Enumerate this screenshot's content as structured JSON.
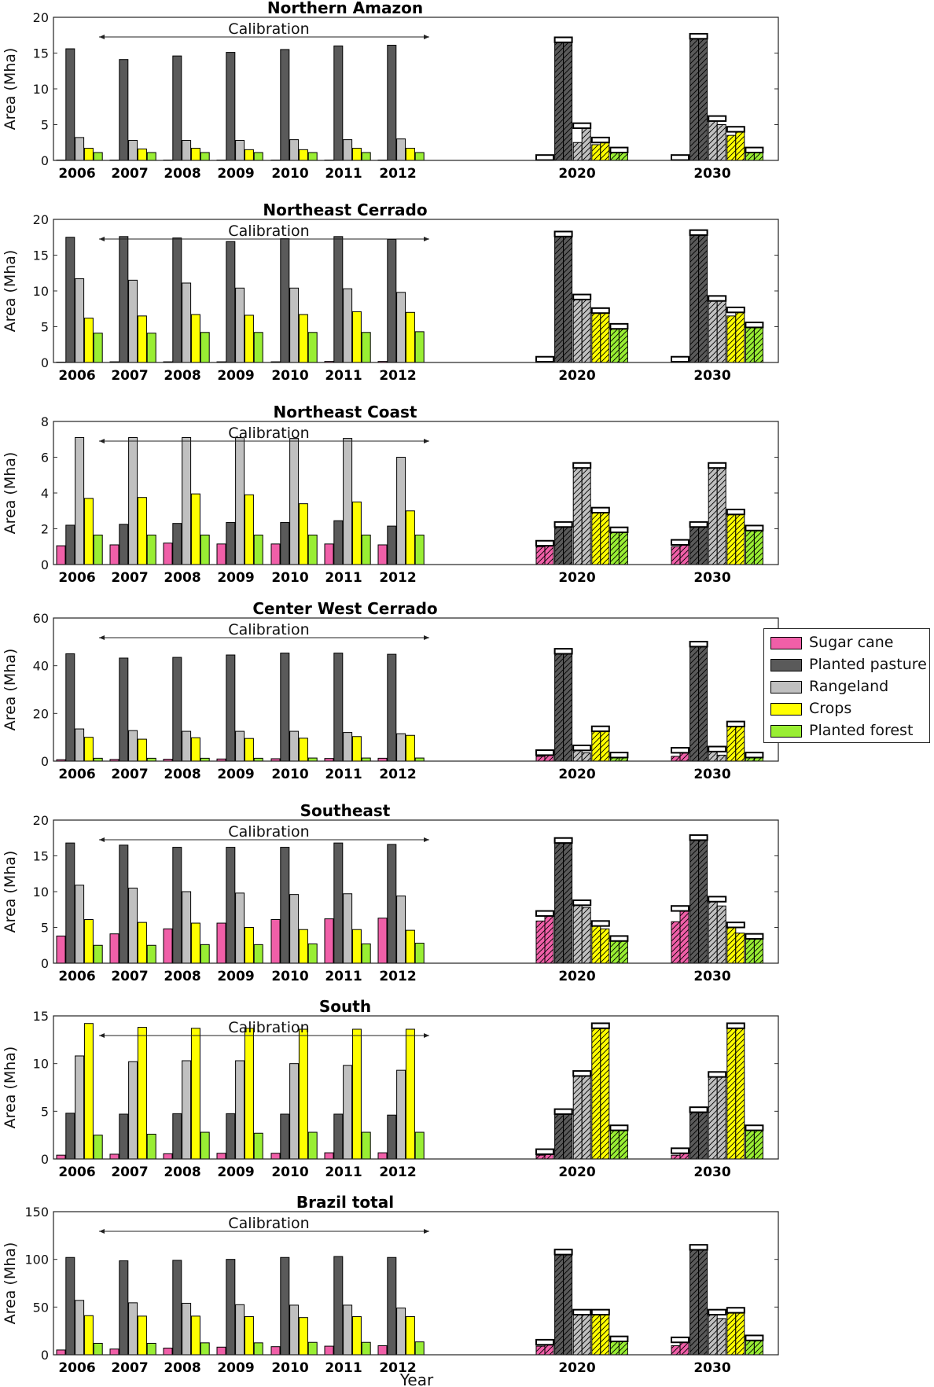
{
  "chart_data": {
    "type": "bar",
    "xlabel": "Year",
    "ylabel": "Area (Mha)",
    "annotation": "Calibration",
    "legend_position": "right",
    "series": [
      {
        "name": "Sugar cane",
        "color": "#f05fa8"
      },
      {
        "name": "Planted pasture",
        "color": "#5a5a5a"
      },
      {
        "name": "Rangeland",
        "color": "#c0c0c0"
      },
      {
        "name": "Crops",
        "color": "#ffff00"
      },
      {
        "name": "Planted forest",
        "color": "#99ee33"
      }
    ],
    "categories": [
      "2006",
      "2007",
      "2008",
      "2009",
      "2010",
      "2011",
      "2012",
      "2020",
      "2030"
    ],
    "panels": [
      {
        "title": "Northern Amazon",
        "ylim": [
          0,
          20
        ],
        "yticks": [
          0,
          5,
          10,
          15,
          20
        ],
        "historical": {
          "2006": [
            0.05,
            15.6,
            3.2,
            1.7,
            1.1
          ],
          "2007": [
            0.05,
            14.1,
            2.8,
            1.6,
            1.1
          ],
          "2008": [
            0.05,
            14.6,
            2.8,
            1.7,
            1.1
          ],
          "2009": [
            0.05,
            15.1,
            2.8,
            1.5,
            1.1
          ],
          "2010": [
            0.05,
            15.5,
            2.9,
            1.5,
            1.1
          ],
          "2011": [
            0.05,
            16.0,
            2.9,
            1.7,
            1.1
          ],
          "2012": [
            0.05,
            16.1,
            3.0,
            1.7,
            1.1
          ]
        },
        "projection": {
          "2020": [
            [
              0.05,
              0.05
            ],
            [
              16.5,
              16.5
            ],
            [
              2.5,
              4.5
            ],
            [
              2.2,
              2.5
            ],
            [
              1.1,
              1.1
            ]
          ],
          "2030": [
            [
              0.05,
              0.05
            ],
            [
              17.0,
              17.0
            ],
            [
              5.5,
              5.0
            ],
            [
              3.5,
              4.0
            ],
            [
              1.1,
              1.1
            ]
          ]
        }
      },
      {
        "title": "Northeast Cerrado",
        "ylim": [
          0,
          20
        ],
        "yticks": [
          0,
          5,
          10,
          15,
          20
        ],
        "historical": {
          "2006": [
            0.05,
            17.5,
            11.7,
            6.2,
            4.1
          ],
          "2007": [
            0.1,
            17.6,
            11.5,
            6.5,
            4.1
          ],
          "2008": [
            0.1,
            17.4,
            11.1,
            6.7,
            4.2
          ],
          "2009": [
            0.1,
            16.9,
            10.4,
            6.6,
            4.2
          ],
          "2010": [
            0.1,
            17.3,
            10.4,
            6.7,
            4.2
          ],
          "2011": [
            0.15,
            17.6,
            10.3,
            7.1,
            4.2
          ],
          "2012": [
            0.15,
            17.2,
            9.8,
            7.0,
            4.3
          ]
        },
        "projection": {
          "2020": [
            [
              0.1,
              0.1
            ],
            [
              17.6,
              17.6
            ],
            [
              8.8,
              8.8
            ],
            [
              6.9,
              6.9
            ],
            [
              4.7,
              4.7
            ]
          ],
          "2030": [
            [
              0.1,
              0.1
            ],
            [
              17.8,
              17.8
            ],
            [
              8.6,
              8.6
            ],
            [
              6.5,
              7.0
            ],
            [
              4.9,
              4.9
            ]
          ]
        }
      },
      {
        "title": "Northeast Coast",
        "ylim": [
          0,
          8
        ],
        "yticks": [
          0,
          2,
          4,
          6,
          8
        ],
        "historical": {
          "2006": [
            1.05,
            2.2,
            7.1,
            3.7,
            1.65
          ],
          "2007": [
            1.1,
            2.25,
            7.1,
            3.75,
            1.65
          ],
          "2008": [
            1.2,
            2.3,
            7.1,
            3.95,
            1.65
          ],
          "2009": [
            1.15,
            2.35,
            7.1,
            3.9,
            1.65
          ],
          "2010": [
            1.15,
            2.35,
            7.05,
            3.4,
            1.65
          ],
          "2011": [
            1.15,
            2.45,
            7.05,
            3.5,
            1.65
          ],
          "2012": [
            1.1,
            2.15,
            6.0,
            3.0,
            1.65
          ]
        },
        "projection": {
          "2020": [
            [
              1.0,
              1.05
            ],
            [
              2.1,
              2.1
            ],
            [
              5.4,
              5.4
            ],
            [
              2.9,
              2.9
            ],
            [
              1.8,
              1.8
            ]
          ],
          "2030": [
            [
              1.0,
              1.1
            ],
            [
              2.1,
              2.1
            ],
            [
              5.4,
              5.4
            ],
            [
              2.8,
              2.8
            ],
            [
              1.9,
              1.9
            ]
          ]
        }
      },
      {
        "title": "Center West Cerrado",
        "ylim": [
          0,
          60
        ],
        "yticks": [
          0,
          20,
          40,
          60
        ],
        "historical": {
          "2006": [
            0.6,
            45.0,
            13.5,
            10.0,
            1.2
          ],
          "2007": [
            0.7,
            43.2,
            12.8,
            9.2,
            1.2
          ],
          "2008": [
            0.8,
            43.5,
            12.5,
            9.8,
            1.2
          ],
          "2009": [
            0.9,
            44.5,
            12.5,
            9.5,
            1.2
          ],
          "2010": [
            1.0,
            45.3,
            12.5,
            9.6,
            1.3
          ],
          "2011": [
            1.1,
            45.3,
            12.0,
            10.3,
            1.3
          ],
          "2012": [
            1.2,
            44.8,
            11.5,
            10.8,
            1.3
          ]
        },
        "projection": {
          "2020": [
            [
              2.0,
              2.5
            ],
            [
              45.0,
              45.0
            ],
            [
              4.5,
              3.5
            ],
            [
              12.5,
              12.5
            ],
            [
              1.5,
              1.5
            ]
          ],
          "2030": [
            [
              2.0,
              3.5
            ],
            [
              48.0,
              48.0
            ],
            [
              4.0,
              2.5
            ],
            [
              14.5,
              14.5
            ],
            [
              1.5,
              1.5
            ]
          ]
        }
      },
      {
        "title": "Southeast",
        "ylim": [
          0,
          20
        ],
        "yticks": [
          0,
          5,
          10,
          15,
          20
        ],
        "historical": {
          "2006": [
            3.8,
            16.8,
            10.9,
            6.1,
            2.5
          ],
          "2007": [
            4.1,
            16.5,
            10.5,
            5.7,
            2.5
          ],
          "2008": [
            4.8,
            16.2,
            10.0,
            5.6,
            2.6
          ],
          "2009": [
            5.6,
            16.2,
            9.8,
            5.0,
            2.6
          ],
          "2010": [
            6.1,
            16.2,
            9.6,
            4.7,
            2.7
          ],
          "2011": [
            6.2,
            16.8,
            9.7,
            4.7,
            2.7
          ],
          "2012": [
            6.3,
            16.6,
            9.4,
            4.6,
            2.8
          ]
        },
        "projection": {
          "2020": [
            [
              5.9,
              6.6
            ],
            [
              16.8,
              16.8
            ],
            [
              8.1,
              7.8
            ],
            [
              5.2,
              4.8
            ],
            [
              3.1,
              3.1
            ]
          ],
          "2030": [
            [
              5.8,
              7.3
            ],
            [
              17.2,
              17.2
            ],
            [
              8.6,
              8.0
            ],
            [
              5.0,
              4.2
            ],
            [
              3.4,
              3.4
            ]
          ]
        }
      },
      {
        "title": "South",
        "ylim": [
          0,
          15
        ],
        "yticks": [
          0,
          5,
          10,
          15
        ],
        "historical": {
          "2006": [
            0.4,
            4.8,
            10.8,
            14.2,
            2.5
          ],
          "2007": [
            0.5,
            4.7,
            10.2,
            13.8,
            2.6
          ],
          "2008": [
            0.55,
            4.75,
            10.3,
            13.7,
            2.8
          ],
          "2009": [
            0.6,
            4.75,
            10.3,
            13.7,
            2.7
          ],
          "2010": [
            0.6,
            4.7,
            10.0,
            13.6,
            2.8
          ],
          "2011": [
            0.65,
            4.7,
            9.8,
            13.6,
            2.8
          ],
          "2012": [
            0.65,
            4.6,
            9.3,
            13.6,
            2.8
          ]
        },
        "projection": {
          "2020": [
            [
              0.4,
              0.5
            ],
            [
              4.7,
              4.7
            ],
            [
              8.7,
              8.7
            ],
            [
              13.7,
              13.7
            ],
            [
              3.0,
              3.0
            ]
          ],
          "2030": [
            [
              0.4,
              0.6
            ],
            [
              4.9,
              4.9
            ],
            [
              8.6,
              8.6
            ],
            [
              13.7,
              13.7
            ],
            [
              3.0,
              3.0
            ]
          ]
        }
      },
      {
        "title": "Brazil total",
        "ylim": [
          0,
          150
        ],
        "yticks": [
          0,
          50,
          100,
          150
        ],
        "historical": {
          "2006": [
            5.0,
            102.0,
            57.0,
            41.0,
            12.0
          ],
          "2007": [
            6.0,
            98.5,
            54.5,
            40.5,
            12.0
          ],
          "2008": [
            7.0,
            99.0,
            54.0,
            40.5,
            12.5
          ],
          "2009": [
            8.0,
            100.0,
            52.5,
            40.0,
            12.5
          ],
          "2010": [
            8.5,
            102.0,
            52.0,
            39.0,
            13.0
          ],
          "2011": [
            9.0,
            103.0,
            52.0,
            40.0,
            13.0
          ],
          "2012": [
            9.5,
            102.0,
            49.0,
            40.0,
            13.5
          ]
        },
        "projection": {
          "2020": [
            [
              9.0,
              10.5
            ],
            [
              105.0,
              105.0
            ],
            [
              42.0,
              42.0
            ],
            [
              42.0,
              42.0
            ],
            [
              14.0,
              14.0
            ]
          ],
          "2030": [
            [
              9.5,
              13.0
            ],
            [
              110.0,
              110.0
            ],
            [
              42.0,
              38.0
            ],
            [
              44.0,
              44.0
            ],
            [
              15.0,
              15.0
            ]
          ]
        }
      }
    ]
  }
}
